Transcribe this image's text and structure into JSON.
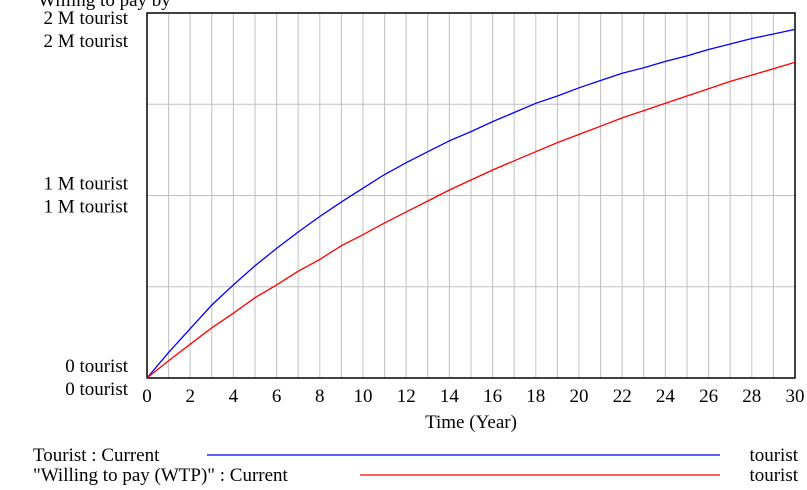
{
  "chart_data": {
    "type": "line",
    "title": "",
    "top_label": "Willing to pay by",
    "xlabel": "Time (Year)",
    "x_ticks": [
      0,
      2,
      4,
      6,
      8,
      10,
      12,
      14,
      16,
      18,
      20,
      22,
      24,
      26,
      28,
      30
    ],
    "xlim": [
      0,
      30
    ],
    "ylim": [
      0,
      2000000
    ],
    "y_tick_labels": [
      {
        "value": 2000000,
        "lines": [
          "2 M   tourist",
          "2 M   tourist"
        ]
      },
      {
        "value": 1000000,
        "lines": [
          "1 M   tourist",
          "1 M   tourist"
        ]
      },
      {
        "value": 0,
        "lines": [
          "0   tourist",
          "0   tourist"
        ]
      }
    ],
    "grid": true,
    "x": [
      0,
      1,
      2,
      3,
      4,
      5,
      6,
      7,
      8,
      9,
      10,
      11,
      12,
      13,
      14,
      15,
      16,
      17,
      18,
      19,
      20,
      21,
      22,
      23,
      24,
      25,
      26,
      27,
      28,
      29,
      30
    ],
    "series": [
      {
        "name": "Tourist : Current",
        "unit": "tourist",
        "color": "#0000ff",
        "values": [
          0,
          140000,
          270000,
          400000,
          510000,
          615000,
          710000,
          800000,
          885000,
          965000,
          1040000,
          1115000,
          1180000,
          1240000,
          1300000,
          1350000,
          1405000,
          1455000,
          1505000,
          1545000,
          1590000,
          1630000,
          1670000,
          1700000,
          1735000,
          1765000,
          1800000,
          1830000,
          1860000,
          1885000,
          1910000
        ]
      },
      {
        "name": "\"Willing to pay (WTP)\" : Current",
        "unit": "tourist",
        "color": "#ff0000",
        "values": [
          0,
          95000,
          185000,
          275000,
          355000,
          440000,
          510000,
          585000,
          650000,
          725000,
          785000,
          850000,
          910000,
          970000,
          1030000,
          1085000,
          1140000,
          1190000,
          1240000,
          1290000,
          1335000,
          1380000,
          1425000,
          1465000,
          1505000,
          1545000,
          1585000,
          1625000,
          1660000,
          1695000,
          1730000
        ]
      }
    ]
  },
  "colors": {
    "grid": "#c0c0c0",
    "axis": "#000000"
  }
}
